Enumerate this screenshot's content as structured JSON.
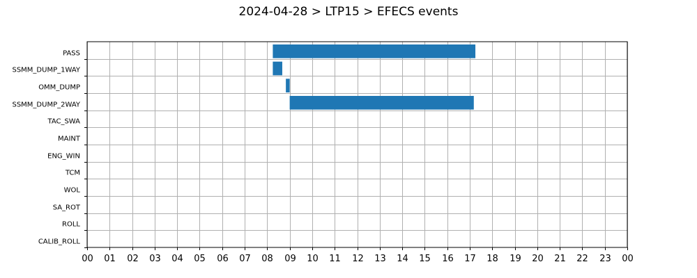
{
  "chart_data": {
    "type": "bar",
    "orientation": "horizontal-timeline",
    "title": "2024-04-28 > LTP15 > EFECS events",
    "xlabel": "",
    "ylabel": "",
    "xlim": [
      0,
      24
    ],
    "x_tick_labels": [
      "00",
      "01",
      "02",
      "03",
      "04",
      "05",
      "06",
      "07",
      "08",
      "09",
      "10",
      "11",
      "12",
      "13",
      "14",
      "15",
      "16",
      "17",
      "18",
      "19",
      "20",
      "21",
      "22",
      "23",
      "00"
    ],
    "categories": [
      "PASS",
      "SSMM_DUMP_1WAY",
      "OMM_DUMP",
      "SSMM_DUMP_2WAY",
      "TAC_SWA",
      "MAINT",
      "ENG_WIN",
      "TCM",
      "WOL",
      "SA_ROT",
      "ROLL",
      "CALIB_ROLL"
    ],
    "grid": true,
    "legend": "none",
    "bar_color": "#1f77b4",
    "events": [
      {
        "category": "PASS",
        "start": 8.25,
        "end": 17.25
      },
      {
        "category": "SSMM_DUMP_1WAY",
        "start": 8.25,
        "end": 8.67
      },
      {
        "category": "OMM_DUMP",
        "start": 8.83,
        "end": 9.0
      },
      {
        "category": "SSMM_DUMP_2WAY",
        "start": 9.0,
        "end": 17.18
      }
    ]
  }
}
